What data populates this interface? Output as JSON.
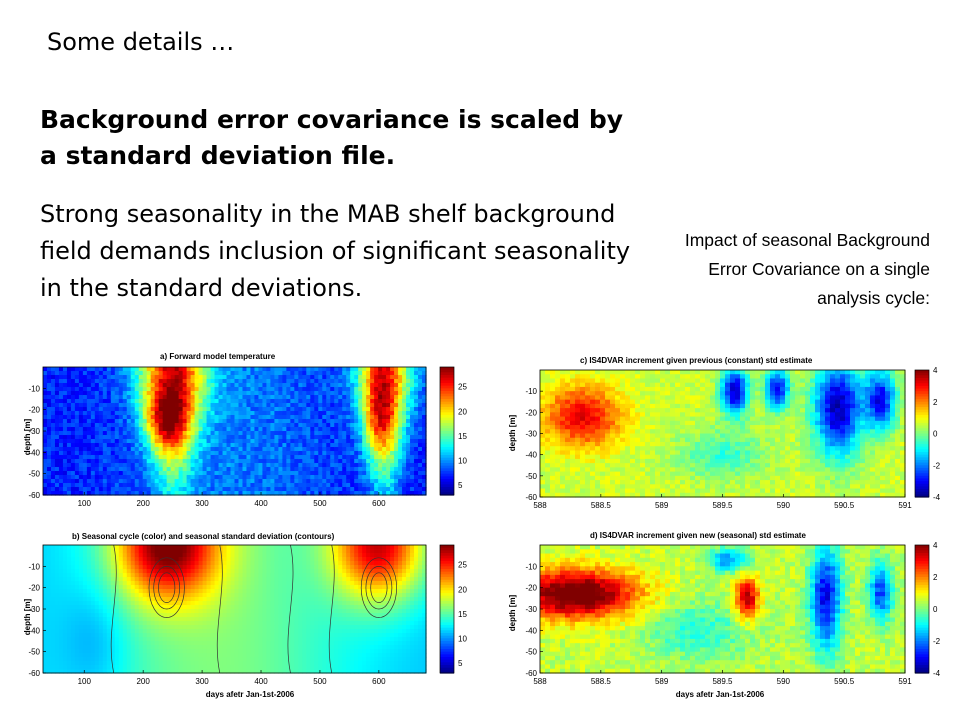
{
  "slide": {
    "heading": "Some details …",
    "bold_text": "Background error covariance is scaled by a standard deviation file.",
    "body_text": "Strong seasonality in the MAB shelf background field demands inclusion of  significant seasonality in the standard deviations.",
    "note": "Impact of seasonal Background Error Covariance on a single analysis cycle:"
  },
  "chart_data": [
    {
      "type": "heatmap",
      "panel": "a",
      "title": "a) Forward model temperature",
      "xlabel": "",
      "ylabel": "depth [m]",
      "xlim": [
        30,
        680
      ],
      "ylim": [
        -60,
        0
      ],
      "xticks": [
        100,
        200,
        300,
        400,
        500,
        600
      ],
      "yticks": [
        -10,
        -20,
        -30,
        -40,
        -50,
        -60
      ],
      "clim": [
        3,
        29
      ],
      "cticks": [
        5,
        10,
        15,
        20,
        25
      ],
      "colormap": "jet"
    },
    {
      "type": "heatmap",
      "panel": "b",
      "title": "b) Seasonal cycle (color) and seasonal standard deviation (contours)",
      "xlabel": "days afetr Jan-1st-2006",
      "ylabel": "depth [m]",
      "xlim": [
        30,
        680
      ],
      "ylim": [
        -60,
        0
      ],
      "xticks": [
        100,
        200,
        300,
        400,
        500,
        600
      ],
      "yticks": [
        -10,
        -20,
        -30,
        -40,
        -50,
        -60
      ],
      "clim": [
        3,
        29
      ],
      "cticks": [
        5,
        10,
        15,
        20,
        25
      ],
      "colormap": "jet",
      "contours": true
    },
    {
      "type": "heatmap",
      "panel": "c",
      "title": "c) IS4DVAR increment given previous (constant) std estimate",
      "xlabel": "",
      "ylabel": "depth [m]",
      "xlim": [
        588,
        591
      ],
      "ylim": [
        -60,
        0
      ],
      "xticks": [
        588,
        588.5,
        589,
        589.5,
        590,
        590.5,
        591
      ],
      "yticks": [
        -10,
        -20,
        -30,
        -40,
        -50,
        -60
      ],
      "clim": [
        -4,
        4
      ],
      "cticks": [
        4,
        2,
        0,
        -2,
        -4
      ],
      "colormap": "jet"
    },
    {
      "type": "heatmap",
      "panel": "d",
      "title": "d) IS4DVAR increment given new (seasonal) std estimate",
      "xlabel": "days afetr Jan-1st-2006",
      "ylabel": "depth [m]",
      "xlim": [
        588,
        591
      ],
      "ylim": [
        -60,
        0
      ],
      "xticks": [
        588,
        588.5,
        589,
        589.5,
        590,
        590.5,
        591
      ],
      "yticks": [
        -10,
        -20,
        -30,
        -40,
        -50,
        -60
      ],
      "clim": [
        -4,
        4
      ],
      "cticks": [
        4,
        2,
        0,
        -2,
        -4
      ],
      "colormap": "jet"
    }
  ]
}
